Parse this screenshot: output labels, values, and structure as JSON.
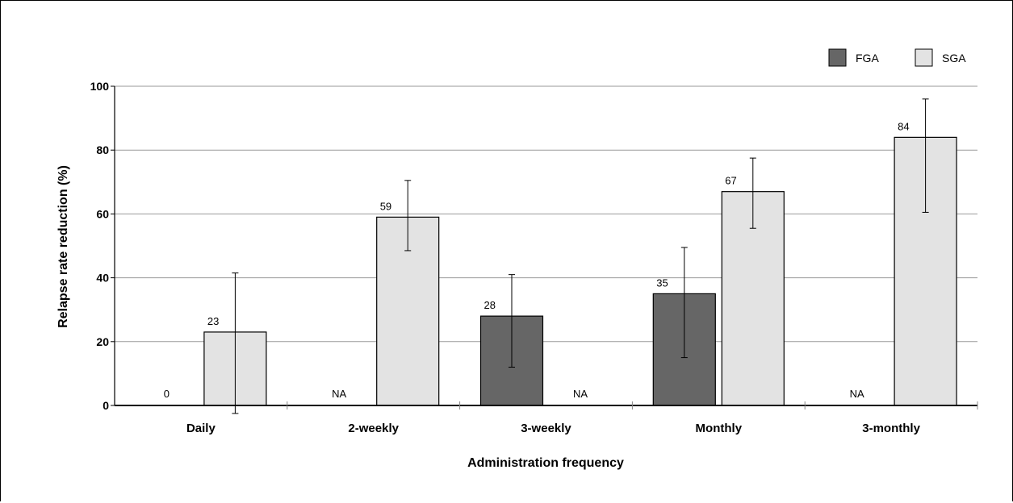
{
  "chart_data": {
    "type": "bar",
    "title": "",
    "xlabel": "Administration frequency",
    "ylabel": "Relapse rate reduction (%)",
    "ylim": [
      0,
      100
    ],
    "yticks": [
      0,
      20,
      40,
      60,
      80,
      100
    ],
    "grid": true,
    "legend_position": "top-right",
    "categories": [
      "Daily",
      "2-weekly",
      "3-weekly",
      "Monthly",
      "3-monthly"
    ],
    "series": [
      {
        "name": "FGA",
        "color": "#666666",
        "values": [
          0,
          null,
          28,
          35,
          null
        ],
        "labels": [
          "0",
          "NA",
          "28",
          "35",
          "NA"
        ],
        "error_low": [
          null,
          null,
          12,
          15,
          null
        ],
        "error_high": [
          null,
          null,
          41,
          49.5,
          null
        ]
      },
      {
        "name": "SGA",
        "color": "#e3e3e3",
        "values": [
          23,
          59,
          null,
          67,
          84
        ],
        "labels": [
          "23",
          "59",
          "NA",
          "67",
          "84"
        ],
        "error_low": [
          -2.5,
          48.5,
          null,
          55.5,
          60.5
        ],
        "error_high": [
          41.5,
          70.5,
          null,
          77.5,
          96
        ]
      }
    ]
  }
}
